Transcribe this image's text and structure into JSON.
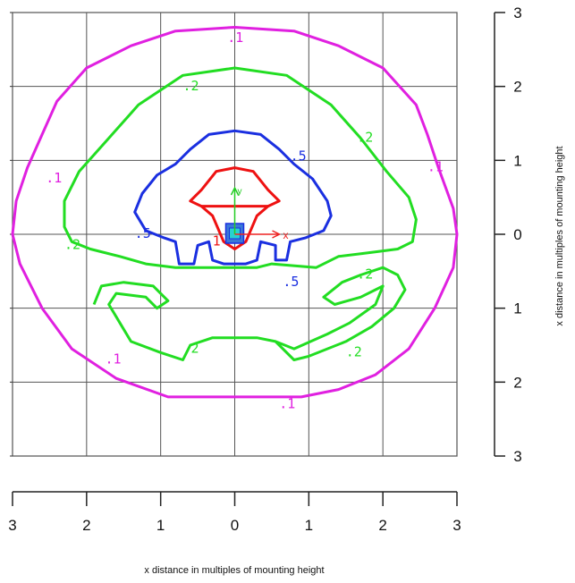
{
  "chart_data": {
    "type": "contour",
    "title": "",
    "xlabel": "x distance in multiples of mounting height",
    "ylabel": "x distance in multiples of mounting height",
    "xlim": [
      -3,
      3
    ],
    "ylim": [
      -3,
      3
    ],
    "grid": true,
    "x_ticks": [
      -3,
      -2,
      -1,
      0,
      1,
      2,
      3
    ],
    "x_tick_labels": [
      "3",
      "2",
      "1",
      "0",
      "1",
      "2",
      "3"
    ],
    "y_ticks": [
      3,
      2,
      1,
      0,
      -1,
      -2,
      -3
    ],
    "y_tick_labels": [
      "3",
      "2",
      "1",
      "0",
      "1",
      "2",
      "3"
    ],
    "luminaire_axes": {
      "x_label": "x",
      "y_label": "y"
    },
    "series": [
      {
        "level": 0.1,
        "color": "#e020e0",
        "points": [
          [
            0,
            2.8
          ],
          [
            0.8,
            2.75
          ],
          [
            1.4,
            2.55
          ],
          [
            2.0,
            2.25
          ],
          [
            2.45,
            1.75
          ],
          [
            2.6,
            1.35
          ],
          [
            2.75,
            0.9
          ],
          [
            2.95,
            0.35
          ],
          [
            3.0,
            0
          ],
          [
            2.95,
            -0.45
          ],
          [
            2.7,
            -1.0
          ],
          [
            2.35,
            -1.55
          ],
          [
            1.9,
            -1.9
          ],
          [
            1.4,
            -2.1
          ],
          [
            0.9,
            -2.2
          ],
          [
            0.3,
            -2.2
          ],
          [
            -0.3,
            -2.2
          ],
          [
            -0.9,
            -2.2
          ],
          [
            -1.6,
            -1.95
          ],
          [
            -2.2,
            -1.55
          ],
          [
            -2.6,
            -1.0
          ],
          [
            -2.9,
            -0.4
          ],
          [
            -3.0,
            0
          ],
          [
            -2.95,
            0.45
          ],
          [
            -2.8,
            0.9
          ],
          [
            -2.6,
            1.35
          ],
          [
            -2.4,
            1.8
          ],
          [
            -2.0,
            2.25
          ],
          [
            -1.4,
            2.55
          ],
          [
            -0.8,
            2.75
          ],
          [
            0,
            2.8
          ]
        ],
        "labels": [
          {
            "text": ".1",
            "x": -0.1,
            "y": 2.6
          },
          {
            "text": ".1",
            "x": -2.55,
            "y": 0.7
          },
          {
            "text": ".1",
            "x": 2.6,
            "y": 0.85
          },
          {
            "text": ".1",
            "x": -1.75,
            "y": -1.75
          },
          {
            "text": ".1",
            "x": 0.6,
            "y": -2.35
          }
        ]
      },
      {
        "level": 0.2,
        "color": "#22dd22",
        "points": [
          [
            0,
            2.25
          ],
          [
            0.7,
            2.15
          ],
          [
            1.3,
            1.75
          ],
          [
            1.7,
            1.3
          ],
          [
            2.05,
            0.85
          ],
          [
            2.35,
            0.5
          ],
          [
            2.45,
            0.2
          ],
          [
            2.4,
            -0.1
          ],
          [
            2.2,
            -0.2
          ],
          [
            1.8,
            -0.25
          ],
          [
            1.4,
            -0.3
          ],
          [
            1.1,
            -0.45
          ],
          [
            0.5,
            -0.4
          ],
          [
            0.3,
            -0.45
          ],
          [
            0,
            -0.45
          ],
          [
            -0.3,
            -0.45
          ],
          [
            -0.8,
            -0.45
          ],
          [
            -1.2,
            -0.4
          ],
          [
            -1.55,
            -0.3
          ],
          [
            -1.95,
            -0.2
          ],
          [
            -2.2,
            -0.1
          ],
          [
            -2.3,
            0.1
          ],
          [
            -2.3,
            0.45
          ],
          [
            -2.1,
            0.85
          ],
          [
            -1.7,
            1.3
          ],
          [
            -1.3,
            1.75
          ],
          [
            -0.7,
            2.15
          ],
          [
            0,
            2.25
          ]
        ],
        "extra": [
          [
            [
              -1.9,
              -0.95
            ],
            [
              -1.8,
              -0.7
            ],
            [
              -1.5,
              -0.65
            ],
            [
              -1.1,
              -0.7
            ],
            [
              -0.9,
              -0.9
            ],
            [
              -1.05,
              -1.0
            ],
            [
              -1.2,
              -0.85
            ],
            [
              -1.6,
              -0.8
            ],
            [
              -1.7,
              -0.95
            ],
            [
              -1.55,
              -1.2
            ],
            [
              -1.4,
              -1.45
            ],
            [
              -1.0,
              -1.6
            ],
            [
              -0.7,
              -1.7
            ],
            [
              -0.6,
              -1.5
            ],
            [
              -0.3,
              -1.4
            ],
            [
              0.3,
              -1.4
            ],
            [
              0.55,
              -1.45
            ],
            [
              0.8,
              -1.7
            ],
            [
              1.0,
              -1.65
            ],
            [
              1.5,
              -1.45
            ],
            [
              1.85,
              -1.25
            ],
            [
              2.15,
              -1.0
            ],
            [
              2.3,
              -0.75
            ],
            [
              2.2,
              -0.55
            ],
            [
              2.0,
              -0.45
            ],
            [
              1.7,
              -0.55
            ],
            [
              1.45,
              -0.65
            ],
            [
              1.2,
              -0.85
            ],
            [
              1.35,
              -0.95
            ],
            [
              1.7,
              -0.85
            ],
            [
              2.0,
              -0.7
            ],
            [
              1.9,
              -0.95
            ],
            [
              1.55,
              -1.2
            ],
            [
              1.25,
              -1.35
            ],
            [
              0.8,
              -1.55
            ],
            [
              0.55,
              -1.45
            ]
          ]
        ],
        "labels": [
          {
            "text": ".2",
            "x": -0.7,
            "y": 1.95
          },
          {
            "text": ".2",
            "x": 1.65,
            "y": 1.25
          },
          {
            "text": ".2",
            "x": -2.3,
            "y": -0.2
          },
          {
            "text": ".2",
            "x": 1.65,
            "y": -0.6
          },
          {
            "text": ".2",
            "x": -0.7,
            "y": -1.6
          },
          {
            "text": ".2",
            "x": 1.5,
            "y": -1.65
          }
        ]
      },
      {
        "level": 0.5,
        "color": "#1a2fe0",
        "points": [
          [
            0,
            1.4
          ],
          [
            0.35,
            1.35
          ],
          [
            0.6,
            1.15
          ],
          [
            0.8,
            0.95
          ],
          [
            1.05,
            0.75
          ],
          [
            1.25,
            0.45
          ],
          [
            1.3,
            0.25
          ],
          [
            1.2,
            0.05
          ],
          [
            0.95,
            -0.05
          ],
          [
            0.75,
            -0.1
          ],
          [
            0.7,
            -0.35
          ],
          [
            0.55,
            -0.35
          ],
          [
            0.55,
            -0.15
          ],
          [
            0.35,
            -0.1
          ],
          [
            0.3,
            -0.35
          ],
          [
            0.15,
            -0.4
          ],
          [
            0,
            -0.4
          ],
          [
            -0.15,
            -0.4
          ],
          [
            -0.3,
            -0.35
          ],
          [
            -0.35,
            -0.1
          ],
          [
            -0.5,
            -0.15
          ],
          [
            -0.55,
            -0.4
          ],
          [
            -0.75,
            -0.4
          ],
          [
            -0.8,
            -0.1
          ],
          [
            -0.95,
            -0.05
          ],
          [
            -1.2,
            0.05
          ],
          [
            -1.35,
            0.3
          ],
          [
            -1.25,
            0.55
          ],
          [
            -1.05,
            0.8
          ],
          [
            -0.8,
            0.95
          ],
          [
            -0.6,
            1.15
          ],
          [
            -0.35,
            1.35
          ],
          [
            0,
            1.4
          ]
        ],
        "labels": [
          {
            "text": ".5",
            "x": 0.75,
            "y": 1.0
          },
          {
            "text": ".5",
            "x": -1.35,
            "y": -0.05
          },
          {
            "text": ".5",
            "x": 0.65,
            "y": -0.7
          }
        ]
      },
      {
        "level": 1,
        "color": "#ee1111",
        "points": [
          [
            0,
            0.9
          ],
          [
            0.25,
            0.85
          ],
          [
            0.45,
            0.6
          ],
          [
            0.6,
            0.45
          ],
          [
            0.45,
            0.38
          ],
          [
            0.3,
            0.25
          ],
          [
            0.15,
            -0.1
          ],
          [
            0,
            -0.2
          ],
          [
            -0.15,
            -0.1
          ],
          [
            -0.3,
            0.25
          ],
          [
            -0.45,
            0.38
          ],
          [
            -0.6,
            0.45
          ],
          [
            -0.45,
            0.6
          ],
          [
            -0.25,
            0.85
          ],
          [
            0,
            0.9
          ]
        ],
        "extra": [
          [
            [
              -0.45,
              0.38
            ],
            [
              0.45,
              0.38
            ]
          ]
        ],
        "labels": [
          {
            "text": "1",
            "x": -0.3,
            "y": -0.15
          }
        ]
      }
    ]
  }
}
